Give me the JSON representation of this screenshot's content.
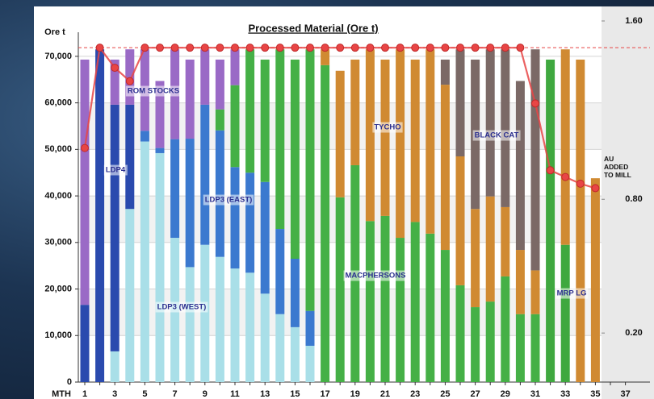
{
  "chart_data": {
    "type": "bar",
    "title": "Processed Material (Ore t)",
    "y_label": "Ore t",
    "x_label": "MTH",
    "categories": [
      "1",
      null,
      "3",
      null,
      "5",
      null,
      "7",
      null,
      "9",
      null,
      "11",
      null,
      "13",
      null,
      "15",
      null,
      "17",
      null,
      "19",
      null,
      "21",
      null,
      "23",
      null,
      "25",
      null,
      "27",
      null,
      "29",
      null,
      "31",
      null,
      "33",
      null,
      "35",
      null,
      "37"
    ],
    "ylim": [
      0,
      77600
    ],
    "yticks": [
      0,
      {
        "value": 10000,
        "label": "10,000"
      },
      {
        "value": 20000,
        "label": "20,000"
      },
      {
        "value": 30000,
        "label": "30,000"
      },
      {
        "value": 40000,
        "label": "40,000"
      },
      {
        "value": 50000,
        "label": "50,000"
      },
      {
        "value": 60000,
        "label": "60,000"
      },
      {
        "value": 70000,
        "label": "70,000"
      }
    ],
    "y2lim": [
      -0.02,
      1.6
    ],
    "y2ticks": [
      {
        "value": 0.2,
        "label": "0.20"
      },
      {
        "value": 0.8,
        "label": "0.80"
      },
      {
        "value": 1.6,
        "label": "1.60"
      }
    ],
    "grid": true,
    "reference_line": 1.48,
    "series": [
      {
        "name": "LDP3 (WEST)",
        "color": "#a9dfe8",
        "values": [
          null,
          null,
          6600,
          37200,
          51700,
          49200,
          31000,
          24700,
          29500,
          26900,
          24400,
          23500,
          19000,
          14600,
          11800,
          7800,
          null,
          null,
          null,
          null,
          null,
          null,
          null,
          null,
          null,
          null,
          null,
          null,
          null,
          null,
          null,
          null,
          null,
          null,
          null,
          null,
          null
        ]
      },
      {
        "name": "LDP4",
        "color": "#2a4aae",
        "values": [
          16600,
          71500,
          53000,
          22400,
          null,
          null,
          null,
          null,
          null,
          null,
          null,
          null,
          null,
          null,
          null,
          null,
          null,
          null,
          null,
          null,
          null,
          null,
          null,
          null,
          null,
          null,
          null,
          null,
          null,
          null,
          null,
          null,
          null,
          null,
          null,
          null,
          null
        ]
      },
      {
        "name": "LDP3 (EAST)",
        "color": "#3b79cf",
        "values": [
          null,
          null,
          null,
          null,
          2300,
          1100,
          21200,
          27600,
          30100,
          27200,
          21800,
          21500,
          24000,
          18300,
          14700,
          7500,
          null,
          null,
          null,
          null,
          null,
          null,
          null,
          null,
          null,
          null,
          null,
          null,
          null,
          null,
          null,
          null,
          null,
          null,
          null,
          null,
          null
        ]
      },
      {
        "name": "MACPHERSONS",
        "color": "#45b046",
        "values": [
          null,
          null,
          null,
          null,
          null,
          null,
          null,
          null,
          null,
          4500,
          17600,
          26500,
          26300,
          38600,
          42800,
          56200,
          68100,
          39700,
          46600,
          34600,
          35700,
          31000,
          34400,
          31900,
          28400,
          20800,
          16100,
          17300,
          22700,
          14600,
          14600,
          null,
          null,
          null,
          null,
          null,
          null
        ]
      },
      {
        "name": "MRP LG",
        "color": "#3fa83f",
        "values": [
          null,
          null,
          null,
          null,
          null,
          null,
          null,
          null,
          null,
          null,
          null,
          null,
          null,
          null,
          null,
          null,
          null,
          null,
          null,
          null,
          null,
          null,
          null,
          null,
          null,
          null,
          null,
          null,
          null,
          null,
          null,
          69300,
          29500,
          null,
          null,
          null,
          null
        ]
      },
      {
        "name": "TYCHO",
        "color": "#d08a32",
        "values": [
          null,
          null,
          null,
          null,
          null,
          null,
          null,
          null,
          null,
          null,
          null,
          null,
          null,
          null,
          null,
          null,
          3400,
          27200,
          22700,
          36900,
          33600,
          40500,
          34900,
          39600,
          35500,
          27700,
          21100,
          22600,
          14900,
          13800,
          9400,
          null,
          42000,
          69300,
          43800,
          null,
          null
        ]
      },
      {
        "name": "BLACK CAT",
        "color": "#7b6966",
        "values": [
          null,
          null,
          null,
          null,
          null,
          null,
          null,
          null,
          null,
          null,
          null,
          null,
          null,
          null,
          null,
          null,
          null,
          null,
          null,
          null,
          null,
          null,
          null,
          null,
          5400,
          23000,
          32100,
          31600,
          33900,
          36300,
          47500,
          null,
          null,
          null,
          null,
          null,
          null
        ]
      },
      {
        "name": "ROM STOCKS",
        "color": "#9a6ac6",
        "values": [
          52700,
          null,
          9700,
          11900,
          17500,
          14400,
          19300,
          17000,
          11900,
          10700,
          7700,
          null,
          null,
          null,
          null,
          null,
          null,
          null,
          null,
          null,
          null,
          null,
          null,
          null,
          null,
          null,
          null,
          null,
          null,
          null,
          null,
          null,
          null,
          null,
          null,
          null,
          null
        ]
      },
      {
        "name": "AU ADDED TO MILL",
        "type": "line",
        "axis": "y2",
        "color": "#e84545",
        "values": [
          1.03,
          1.48,
          1.39,
          1.33,
          1.48,
          1.48,
          1.48,
          1.48,
          1.48,
          1.48,
          1.48,
          1.48,
          1.48,
          1.48,
          1.48,
          1.48,
          1.48,
          1.48,
          1.48,
          1.48,
          1.48,
          1.48,
          1.48,
          1.48,
          1.48,
          1.48,
          1.48,
          1.48,
          1.48,
          1.48,
          1.23,
          0.93,
          0.9,
          0.87,
          0.85,
          null,
          null
        ]
      }
    ]
  }
}
